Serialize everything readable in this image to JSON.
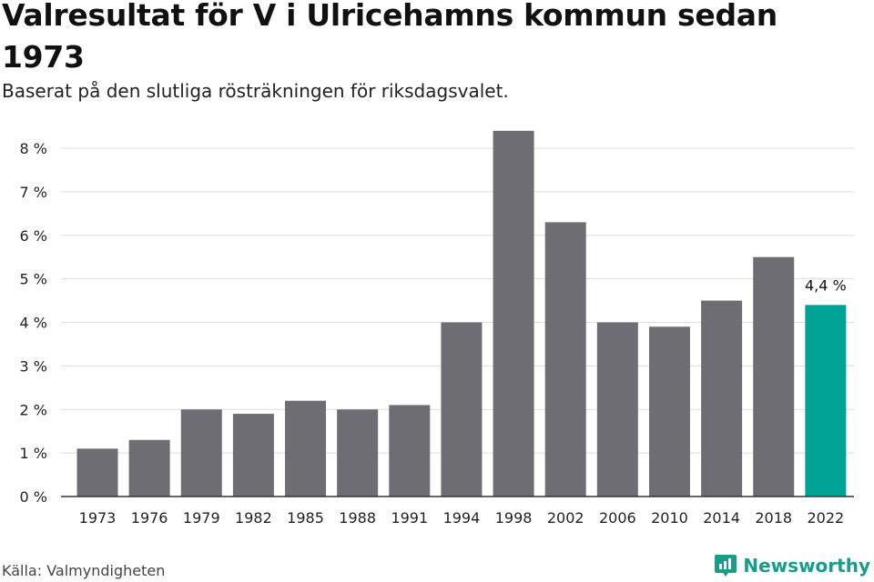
{
  "title": "Valresultat för V i Ulricehamns kommun sedan 1973",
  "subtitle": "Baserat på den slutliga rösträkningen för riksdagsvalet.",
  "source": "Källa: Valmyndigheten",
  "brand": {
    "name": "Newsworthy",
    "icon": "newsworthy-logo-icon",
    "color": "#1a9c8a"
  },
  "colors": {
    "bar": "#6e6d73",
    "highlight": "#00a396",
    "grid": "#dddddd",
    "axis": "#333333"
  },
  "chart_data": {
    "type": "bar",
    "title": "Valresultat för V i Ulricehamns kommun sedan 1973",
    "subtitle": "Baserat på den slutliga rösträkningen för riksdagsvalet.",
    "xlabel": "",
    "ylabel": "",
    "categories": [
      "1973",
      "1976",
      "1979",
      "1982",
      "1985",
      "1988",
      "1991",
      "1994",
      "1998",
      "2002",
      "2006",
      "2010",
      "2014",
      "2018",
      "2022"
    ],
    "values": [
      1.1,
      1.3,
      2.0,
      1.9,
      2.2,
      2.0,
      2.1,
      4.0,
      8.4,
      6.3,
      4.0,
      3.9,
      4.5,
      5.5,
      4.4
    ],
    "unit": "%",
    "ylim": [
      0,
      8.4
    ],
    "yticks": [
      "0 %",
      "1 %",
      "2 %",
      "3 %",
      "4 %",
      "5 %",
      "6 %",
      "7 %",
      "8 %"
    ],
    "ytick_values": [
      0,
      1,
      2,
      3,
      4,
      5,
      6,
      7,
      8
    ],
    "highlight_index": 14,
    "annotations": [
      {
        "category": "2022",
        "text": "4,4 %"
      }
    ],
    "grid": true,
    "legend": "none"
  }
}
